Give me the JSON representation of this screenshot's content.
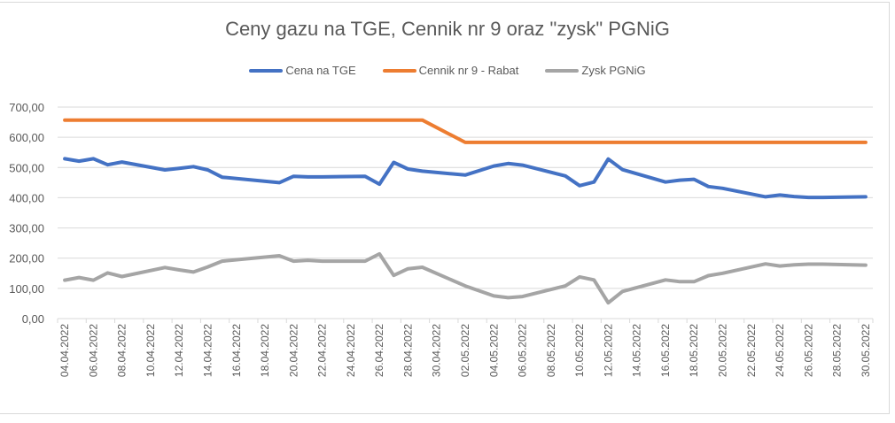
{
  "chart_data": {
    "type": "line",
    "title": "Ceny gazu na TGE, Cennik nr 9 oraz \"zysk\" PGNiG",
    "xlabel": "",
    "ylabel": "",
    "ylim": [
      0,
      700
    ],
    "yticks": [
      "0,00",
      "100,00",
      "200,00",
      "300,00",
      "400,00",
      "500,00",
      "600,00",
      "700,00"
    ],
    "xticks": [
      "04.04.2022",
      "06.04.2022",
      "08.04.2022",
      "10.04.2022",
      "12.04.2022",
      "14.04.2022",
      "16.04.2022",
      "18.04.2022",
      "20.04.2022",
      "22.04.2022",
      "24.04.2022",
      "26.04.2022",
      "28.04.2022",
      "30.04.2022",
      "02.05.2022",
      "04.05.2022",
      "06.05.2022",
      "08.05.2022",
      "10.05.2022",
      "12.05.2022",
      "14.05.2022",
      "16.05.2022",
      "18.05.2022",
      "20.05.2022",
      "22.05.2022",
      "24.05.2022",
      "26.05.2022",
      "28.05.2022",
      "30.05.2022"
    ],
    "grid": true,
    "legend_position": "top",
    "x_day_index": [
      0,
      1,
      2,
      3,
      4,
      7,
      8,
      9,
      10,
      11,
      15,
      16,
      17,
      18,
      21,
      22,
      23,
      24,
      25,
      28,
      30,
      31,
      32,
      35,
      36,
      37,
      38,
      39,
      42,
      43,
      44,
      45,
      46,
      49,
      50,
      51,
      52,
      53,
      56
    ],
    "x": [
      "04.04.2022",
      "05.04.2022",
      "06.04.2022",
      "07.04.2022",
      "08.04.2022",
      "11.04.2022",
      "12.04.2022",
      "13.04.2022",
      "14.04.2022",
      "15.04.2022",
      "19.04.2022",
      "20.04.2022",
      "21.04.2022",
      "22.04.2022",
      "25.04.2022",
      "26.04.2022",
      "27.04.2022",
      "28.04.2022",
      "29.04.2022",
      "02.05.2022",
      "04.05.2022",
      "05.05.2022",
      "06.05.2022",
      "09.05.2022",
      "10.05.2022",
      "11.05.2022",
      "12.05.2022",
      "13.05.2022",
      "16.05.2022",
      "17.05.2022",
      "18.05.2022",
      "19.05.2022",
      "20.05.2022",
      "23.05.2022",
      "24.05.2022",
      "25.05.2022",
      "26.05.2022",
      "27.05.2022",
      "30.05.2022"
    ],
    "series": [
      {
        "name": "Cena na TGE",
        "color": "#4472c4",
        "values": [
          529,
          521,
          529,
          509,
          518,
          492,
          497,
          503,
          492,
          468,
          450,
          471,
          469,
          469,
          471,
          445,
          517,
          495,
          488,
          475,
          505,
          513,
          508,
          472,
          440,
          452,
          528,
          493,
          452,
          458,
          461,
          437,
          431,
          403,
          409,
          404,
          401,
          401,
          403
        ]
      },
      {
        "name": "Cennik nr 9 - Rabat",
        "color": "#ed7d31",
        "values": [
          657,
          657,
          657,
          657,
          657,
          657,
          657,
          657,
          657,
          657,
          657,
          657,
          657,
          657,
          657,
          657,
          657,
          657,
          657,
          583,
          583,
          583,
          583,
          583,
          583,
          583,
          583,
          583,
          583,
          583,
          583,
          583,
          583,
          583,
          583,
          583,
          583,
          583,
          583
        ]
      },
      {
        "name": "Zysk PGNiG",
        "color": "#a5a5a5",
        "values": [
          127,
          136,
          127,
          151,
          139,
          169,
          161,
          154,
          171,
          190,
          208,
          190,
          193,
          190,
          190,
          214,
          143,
          165,
          170,
          108,
          75,
          69,
          73,
          108,
          138,
          128,
          52,
          90,
          128,
          122,
          122,
          142,
          150,
          181,
          174,
          178,
          180,
          180,
          177
        ]
      }
    ]
  },
  "legend": {
    "items": [
      {
        "label": "Cena na TGE",
        "color": "#4472c4"
      },
      {
        "label": "Cennik nr 9 - Rabat",
        "color": "#ed7d31"
      },
      {
        "label": "Zysk PGNiG",
        "color": "#a5a5a5"
      }
    ]
  }
}
